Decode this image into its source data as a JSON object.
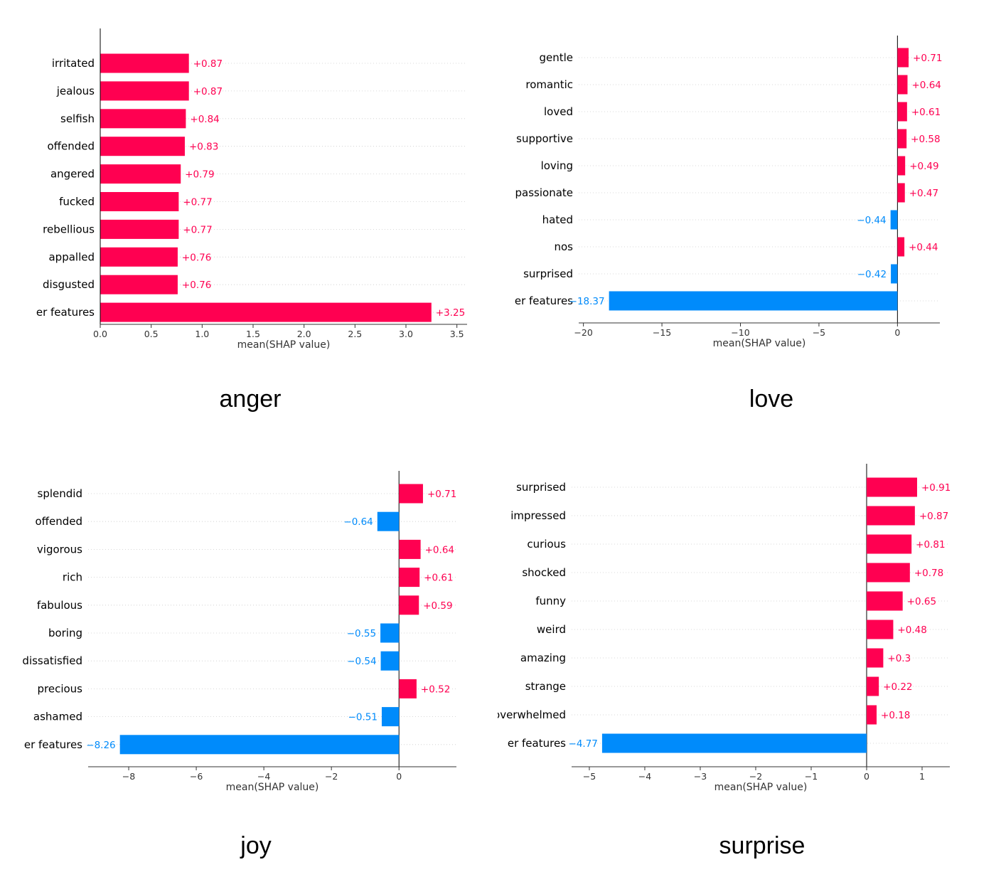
{
  "colors": {
    "positive": "#ff0051",
    "negative": "#008bfb",
    "axis": "#333333",
    "gridline": "#cccccc"
  },
  "chart_data": [
    {
      "type": "bar",
      "caption": "anger",
      "xlabel": "mean(SHAP value)",
      "categories": [
        "irritated",
        "jealous",
        "selfish",
        "offended",
        "angered",
        "fucked",
        "rebellious",
        "appalled",
        "disgusted",
        "er features"
      ],
      "values": [
        0.87,
        0.87,
        0.84,
        0.83,
        0.79,
        0.77,
        0.77,
        0.76,
        0.76,
        3.25
      ],
      "value_labels": [
        "+0.87",
        "+0.87",
        "+0.84",
        "+0.83",
        "+0.79",
        "+0.77",
        "+0.77",
        "+0.76",
        "+0.76",
        "+3.25"
      ],
      "xlim": [
        0,
        3.6
      ],
      "xticks": [
        0,
        0.5,
        1,
        1.5,
        2,
        2.5,
        3,
        3.5
      ],
      "xtick_labels": [
        "0.0",
        "0.5",
        "1.0",
        "1.5",
        "2.0",
        "2.5",
        "3.0",
        "3.5"
      ],
      "grid": "dotted row lines"
    },
    {
      "type": "bar",
      "caption": "love",
      "xlabel": "mean(SHAP value)",
      "categories": [
        "gentle",
        "romantic",
        "loved",
        "supportive",
        "loving",
        "passionate",
        "hated",
        "nos",
        "surprised",
        "er features"
      ],
      "values": [
        0.71,
        0.64,
        0.61,
        0.58,
        0.49,
        0.47,
        -0.44,
        0.44,
        -0.42,
        -18.37
      ],
      "value_labels": [
        "+0.71",
        "+0.64",
        "+0.61",
        "+0.58",
        "+0.49",
        "+0.47",
        "−0.44",
        "+0.44",
        "−0.42",
        "−18.37"
      ],
      "xlim": [
        -20.3,
        2.7
      ],
      "xticks": [
        -20,
        -15,
        -10,
        -5,
        0
      ],
      "xtick_labels": [
        "−20",
        "−15",
        "−10",
        "−5",
        "0"
      ],
      "grid": "dotted row lines"
    },
    {
      "type": "bar",
      "caption": "joy",
      "xlabel": "mean(SHAP value)",
      "categories": [
        "splendid",
        "offended",
        "vigorous",
        "rich",
        "fabulous",
        "boring",
        "dissatisfied",
        "precious",
        "ashamed",
        "er features"
      ],
      "values": [
        0.71,
        -0.64,
        0.64,
        0.61,
        0.59,
        -0.55,
        -0.54,
        0.52,
        -0.51,
        -8.26
      ],
      "value_labels": [
        "+0.71",
        "−0.64",
        "+0.64",
        "+0.61",
        "+0.59",
        "−0.55",
        "−0.54",
        "+0.52",
        "−0.51",
        "−8.26"
      ],
      "xlim": [
        -9.2,
        1.7
      ],
      "xticks": [
        -8,
        -6,
        -4,
        -2,
        0
      ],
      "xtick_labels": [
        "−8",
        "−6",
        "−4",
        "−2",
        "0"
      ],
      "grid": "dotted row lines"
    },
    {
      "type": "bar",
      "caption": "surprise",
      "xlabel": "mean(SHAP value)",
      "categories": [
        "surprised",
        "impressed",
        "curious",
        "shocked",
        "funny",
        "weird",
        "amazing",
        "strange",
        "overwhelmed",
        "er features"
      ],
      "values": [
        0.91,
        0.87,
        0.81,
        0.78,
        0.65,
        0.48,
        0.3,
        0.22,
        0.18,
        -4.77
      ],
      "value_labels": [
        "+0.91",
        "+0.87",
        "+0.81",
        "+0.78",
        "+0.65",
        "+0.48",
        "+0.3",
        "+0.22",
        "+0.18",
        "−4.77"
      ],
      "xlim": [
        -5.32,
        1.5
      ],
      "xticks": [
        -5,
        -4,
        -3,
        -2,
        -1,
        0,
        1
      ],
      "xtick_labels": [
        "−5",
        "−4",
        "−3",
        "−2",
        "−1",
        "0",
        "1"
      ],
      "grid": "dotted row lines"
    }
  ]
}
